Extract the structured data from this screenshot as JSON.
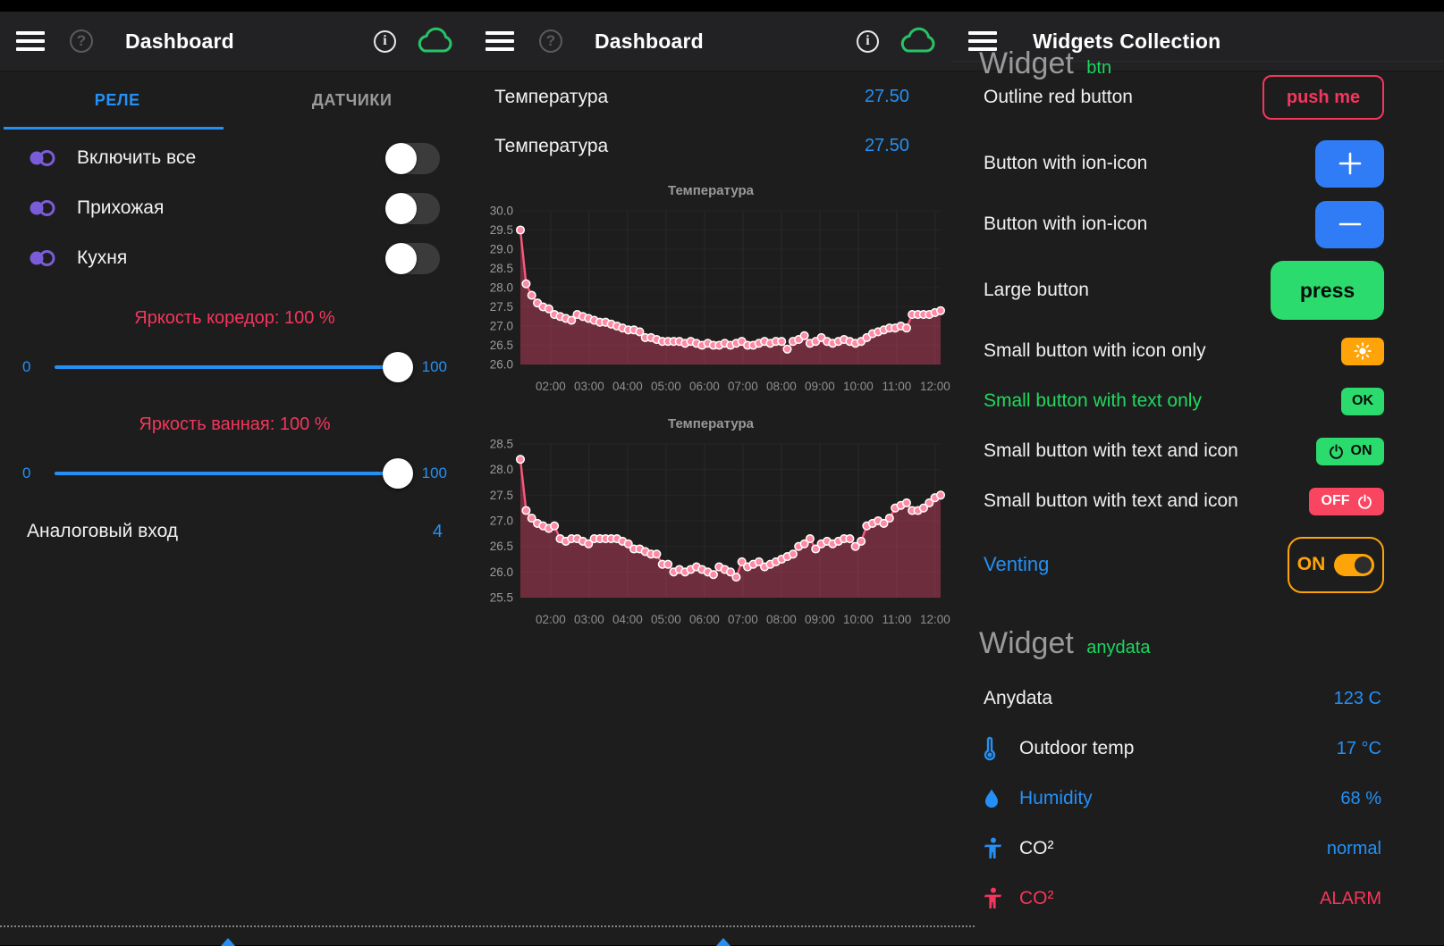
{
  "icon_glyphs": {
    "help": "?",
    "info": "i",
    "plus": "+",
    "minus": "−"
  },
  "left": {
    "title": "Dashboard",
    "tabs": [
      {
        "label": "РЕЛЕ",
        "active": true
      },
      {
        "label": "ДАТЧИКИ",
        "active": false
      }
    ],
    "switches": [
      {
        "label": "Включить все",
        "state": "off"
      },
      {
        "label": "Прихожая",
        "state": "off"
      },
      {
        "label": "Кухня",
        "state": "off"
      }
    ],
    "sliders": [
      {
        "title": "Яркость коредор: 100 %",
        "min_label": "0",
        "max_label": "100",
        "value": 100
      },
      {
        "title": "Яркость ванная: 100 %",
        "min_label": "0",
        "max_label": "100",
        "value": 100
      }
    ],
    "analog": {
      "label": "Аналоговый вход",
      "value": "4"
    }
  },
  "middle": {
    "title": "Dashboard",
    "rows": [
      {
        "label": "Температура",
        "value": "27.50"
      },
      {
        "label": "Температура",
        "value": "27.50"
      }
    ]
  },
  "right": {
    "title": "Widgets Collection",
    "clipped_heading": {
      "text": "Widget",
      "badge": "btn"
    },
    "rows": [
      {
        "label": "Outline red button",
        "button": "push me"
      },
      {
        "label": "Button with ion-icon",
        "icon": "plus"
      },
      {
        "label": "Button with ion-icon",
        "icon": "minus"
      },
      {
        "label": "Large button",
        "button": "press"
      },
      {
        "label": "Small button with icon only",
        "icon": "sun"
      },
      {
        "label": "Small button with text only",
        "button": "OK"
      },
      {
        "label": "Small button with text and icon",
        "button": "ON",
        "icon": "power"
      },
      {
        "label": "Small button with text and icon",
        "button": "OFF",
        "icon": "power"
      },
      {
        "label": "Venting",
        "toggle_label": "ON",
        "state": "on"
      }
    ],
    "widget_heading": {
      "text": "Widget",
      "badge": "anydata"
    },
    "data_rows": [
      {
        "label": "Anydata",
        "value": "123 C"
      },
      {
        "label": "Outdoor temp",
        "value": "17 °C",
        "icon": "thermometer"
      },
      {
        "label": "Humidity",
        "value": "68 %",
        "icon": "droplet"
      },
      {
        "label": "CO²",
        "value": "normal",
        "icon": "person"
      },
      {
        "label": "CO²",
        "value": "ALARM",
        "icon": "person",
        "alarm": true
      }
    ]
  },
  "colors": {
    "accent_blue": "#2490f5",
    "button_blue": "#2f7cf6",
    "green": "#2bdb6d",
    "green_text": "#1fd95f",
    "orange": "#ffa408",
    "red": "#f4365c",
    "off_red": "#fa4561",
    "purple": "#7a5cd8",
    "chart_line": "#f8587c",
    "chart_marker": "#ff8aa4",
    "cloud_green": "#26c467"
  },
  "chart_data": [
    {
      "type": "area",
      "title": "Температура",
      "ylabel": "",
      "xlabel": "",
      "ylim": [
        26.0,
        30.0
      ],
      "y_ticks": [
        30.0,
        29.5,
        29.0,
        28.5,
        28.0,
        27.5,
        27.0,
        26.5,
        26.0
      ],
      "x_ticks": [
        "02:00",
        "03:00",
        "04:00",
        "05:00",
        "06:00",
        "07:00",
        "08:00",
        "09:00",
        "10:00",
        "11:00",
        "12:00"
      ],
      "grid": true,
      "legend": false,
      "values": [
        29.5,
        28.1,
        27.8,
        27.6,
        27.5,
        27.45,
        27.3,
        27.25,
        27.2,
        27.15,
        27.3,
        27.25,
        27.2,
        27.15,
        27.1,
        27.1,
        27.05,
        27.0,
        26.95,
        26.9,
        26.9,
        26.85,
        26.7,
        26.7,
        26.65,
        26.6,
        26.6,
        26.6,
        26.6,
        26.55,
        26.6,
        26.55,
        26.5,
        26.55,
        26.5,
        26.5,
        26.55,
        26.5,
        26.55,
        26.6,
        26.5,
        26.5,
        26.55,
        26.6,
        26.55,
        26.6,
        26.6,
        26.4,
        26.6,
        26.65,
        26.75,
        26.55,
        26.6,
        26.7,
        26.6,
        26.55,
        26.6,
        26.65,
        26.6,
        26.55,
        26.6,
        26.7,
        26.8,
        26.85,
        26.9,
        26.95,
        26.95,
        27.0,
        26.95,
        27.3,
        27.3,
        27.3,
        27.3,
        27.35,
        27.4
      ]
    },
    {
      "type": "area",
      "title": "Температура",
      "ylabel": "",
      "xlabel": "",
      "ylim": [
        25.5,
        28.5
      ],
      "y_ticks": [
        28.5,
        28.0,
        27.5,
        27.0,
        26.5,
        26.0,
        25.5
      ],
      "x_ticks": [
        "02:00",
        "03:00",
        "04:00",
        "05:00",
        "06:00",
        "07:00",
        "08:00",
        "09:00",
        "10:00",
        "11:00",
        "12:00"
      ],
      "grid": true,
      "legend": false,
      "values": [
        28.2,
        27.2,
        27.05,
        26.95,
        26.9,
        26.85,
        26.9,
        26.65,
        26.6,
        26.65,
        26.65,
        26.6,
        26.55,
        26.65,
        26.65,
        26.65,
        26.65,
        26.65,
        26.6,
        26.55,
        26.45,
        26.45,
        26.4,
        26.35,
        26.35,
        26.15,
        26.15,
        26.0,
        26.05,
        26.0,
        26.05,
        26.1,
        26.05,
        26.0,
        25.95,
        26.1,
        26.05,
        26.0,
        25.9,
        26.2,
        26.1,
        26.15,
        26.2,
        26.1,
        26.15,
        26.2,
        26.25,
        26.3,
        26.35,
        26.5,
        26.55,
        26.65,
        26.45,
        26.55,
        26.6,
        26.55,
        26.6,
        26.65,
        26.65,
        26.5,
        26.6,
        26.9,
        26.95,
        27.0,
        26.95,
        27.05,
        27.25,
        27.3,
        27.35,
        27.2,
        27.2,
        27.25,
        27.35,
        27.45,
        27.5
      ]
    }
  ]
}
